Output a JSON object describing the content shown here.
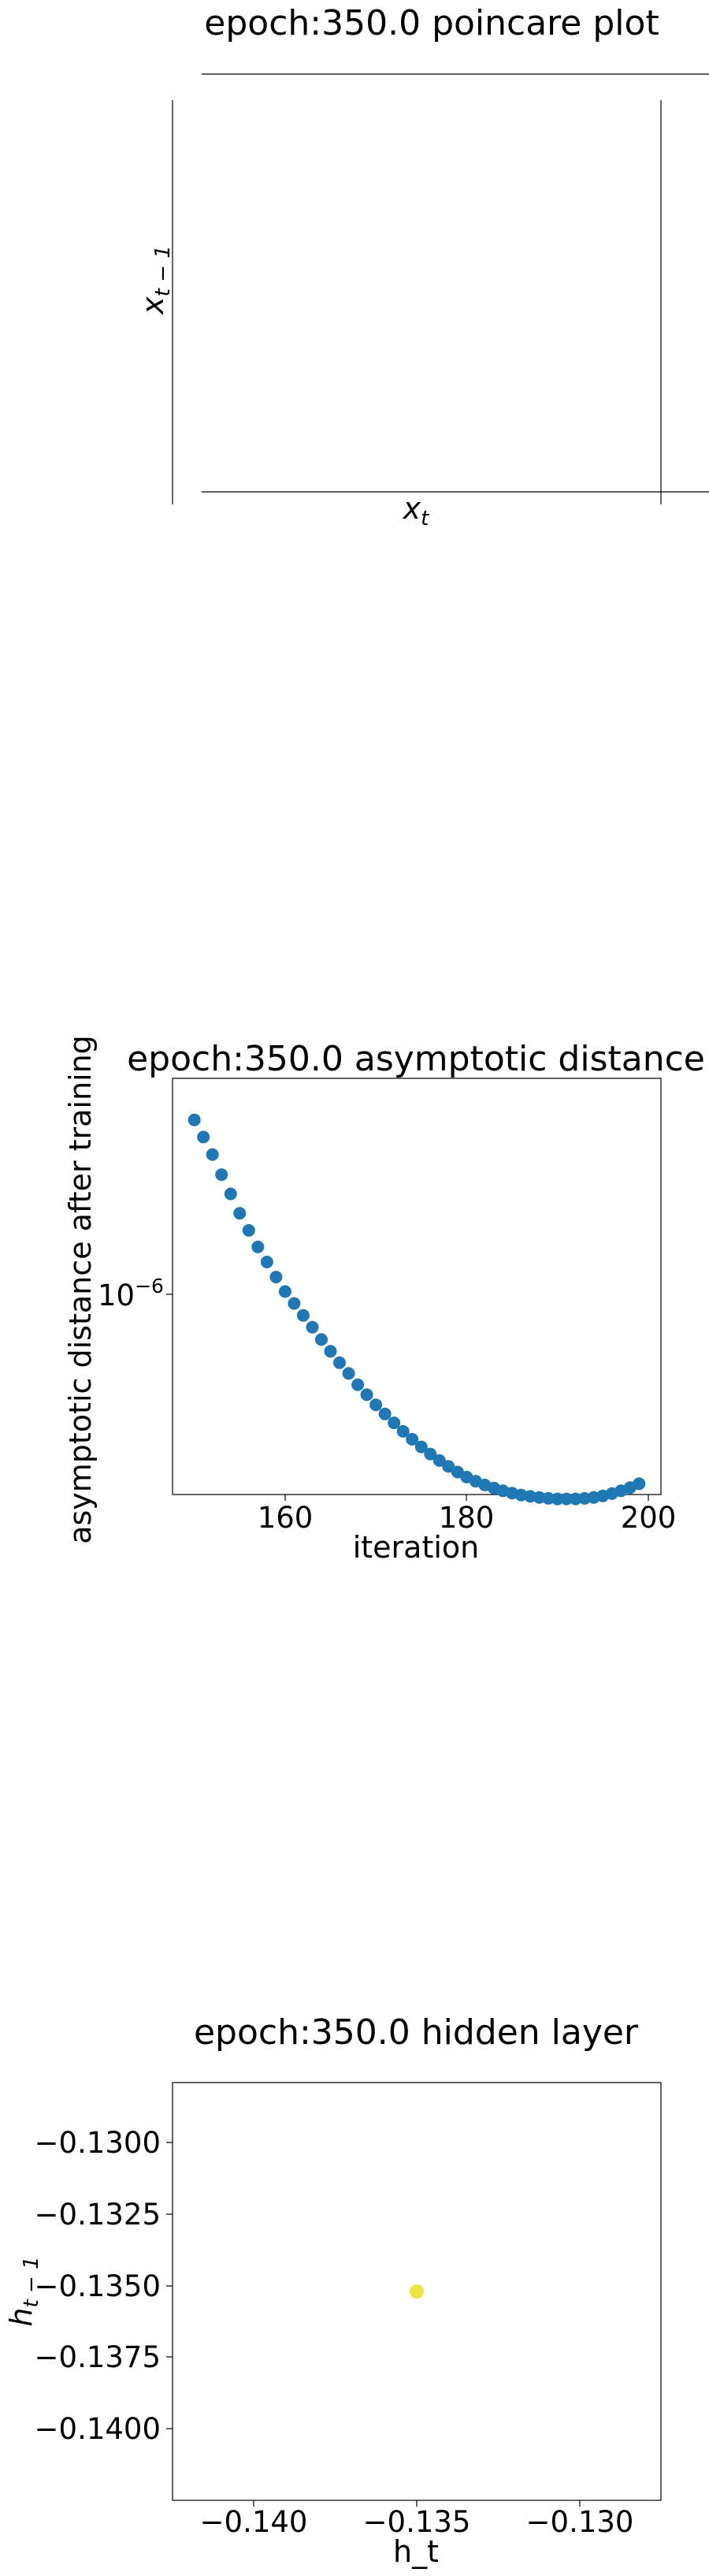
{
  "charts": {
    "poincare": {
      "title": "epoch:350.0 poincare plot",
      "xlabel_base": "x",
      "xlabel_sub": "t",
      "ylabel_base": "x",
      "ylabel_sub": "t − 1"
    },
    "asymptotic": {
      "title": "epoch:350.0 asymptotic distance",
      "xlabel": "iteration",
      "ylabel": "asymptotic distance after training",
      "xticks": [
        "160",
        "180",
        "200"
      ],
      "ytick_base": "10",
      "ytick_exp": "−6"
    },
    "hidden": {
      "title": "epoch:350.0 hidden layer",
      "xlabel": "h_t",
      "ylabel_base": "h",
      "ylabel_sub": "t − 1",
      "xticks": [
        "−0.140",
        "−0.135",
        "−0.130"
      ],
      "yticks": [
        "−0.1300",
        "−0.1325",
        "−0.1350",
        "−0.1375",
        "−0.1400"
      ]
    }
  },
  "chart_data": [
    {
      "type": "scatter",
      "title": "epoch:350.0 poincare plot",
      "xlabel": "x_t",
      "ylabel": "x_{t-1}",
      "points": []
    },
    {
      "type": "scatter",
      "title": "epoch:350.0 asymptotic distance",
      "xlabel": "iteration",
      "ylabel": "asymptotic distance after training",
      "yscale": "log",
      "xlim": [
        147.6,
        201.4
      ],
      "ylim": [
        2.1e-07,
        1.35e-05
      ],
      "color": "#1f77b4",
      "x": [
        150,
        151,
        152,
        153,
        154,
        155,
        156,
        157,
        158,
        159,
        160,
        161,
        162,
        163,
        164,
        165,
        166,
        167,
        168,
        169,
        170,
        171,
        172,
        173,
        174,
        175,
        176,
        177,
        178,
        179,
        180,
        181,
        182,
        183,
        184,
        185,
        186,
        187,
        188,
        189,
        190,
        191,
        192,
        193,
        194,
        195,
        196,
        197,
        198,
        199
      ],
      "y": [
        8.9e-06,
        7.5e-06,
        6.3e-06,
        5.15e-06,
        4.25e-06,
        3.5e-06,
        2.95e-06,
        2.5e-06,
        2.15e-06,
        1.85e-06,
        1.6e-06,
        1.42e-06,
        1.26e-06,
        1.12e-06,
        9.9e-07,
        8.8e-07,
        7.85e-07,
        7.05e-07,
        6.3e-07,
        5.7e-07,
        5.15e-07,
        4.7e-07,
        4.3e-07,
        3.95e-07,
        3.65e-07,
        3.38e-07,
        3.15e-07,
        2.95e-07,
        2.78e-07,
        2.63e-07,
        2.5e-07,
        2.4e-07,
        2.31e-07,
        2.24e-07,
        2.18e-07,
        2.13e-07,
        2.09e-07,
        2.06e-07,
        2.04e-07,
        2.02e-07,
        2.01e-07,
        2.01e-07,
        2.01e-07,
        2.02e-07,
        2.04e-07,
        2.07e-07,
        2.12e-07,
        2.18e-07,
        2.25e-07,
        2.34e-07
      ]
    },
    {
      "type": "scatter",
      "title": "epoch:350.0 hidden layer",
      "xlabel": "h_t",
      "ylabel": "h_{t-1}",
      "xlim": [
        -0.1425,
        -0.1275
      ],
      "ylim": [
        -0.1423,
        -0.1277
      ],
      "color": "#f0e442",
      "x": [
        -0.135
      ],
      "y": [
        -0.135
      ]
    }
  ]
}
